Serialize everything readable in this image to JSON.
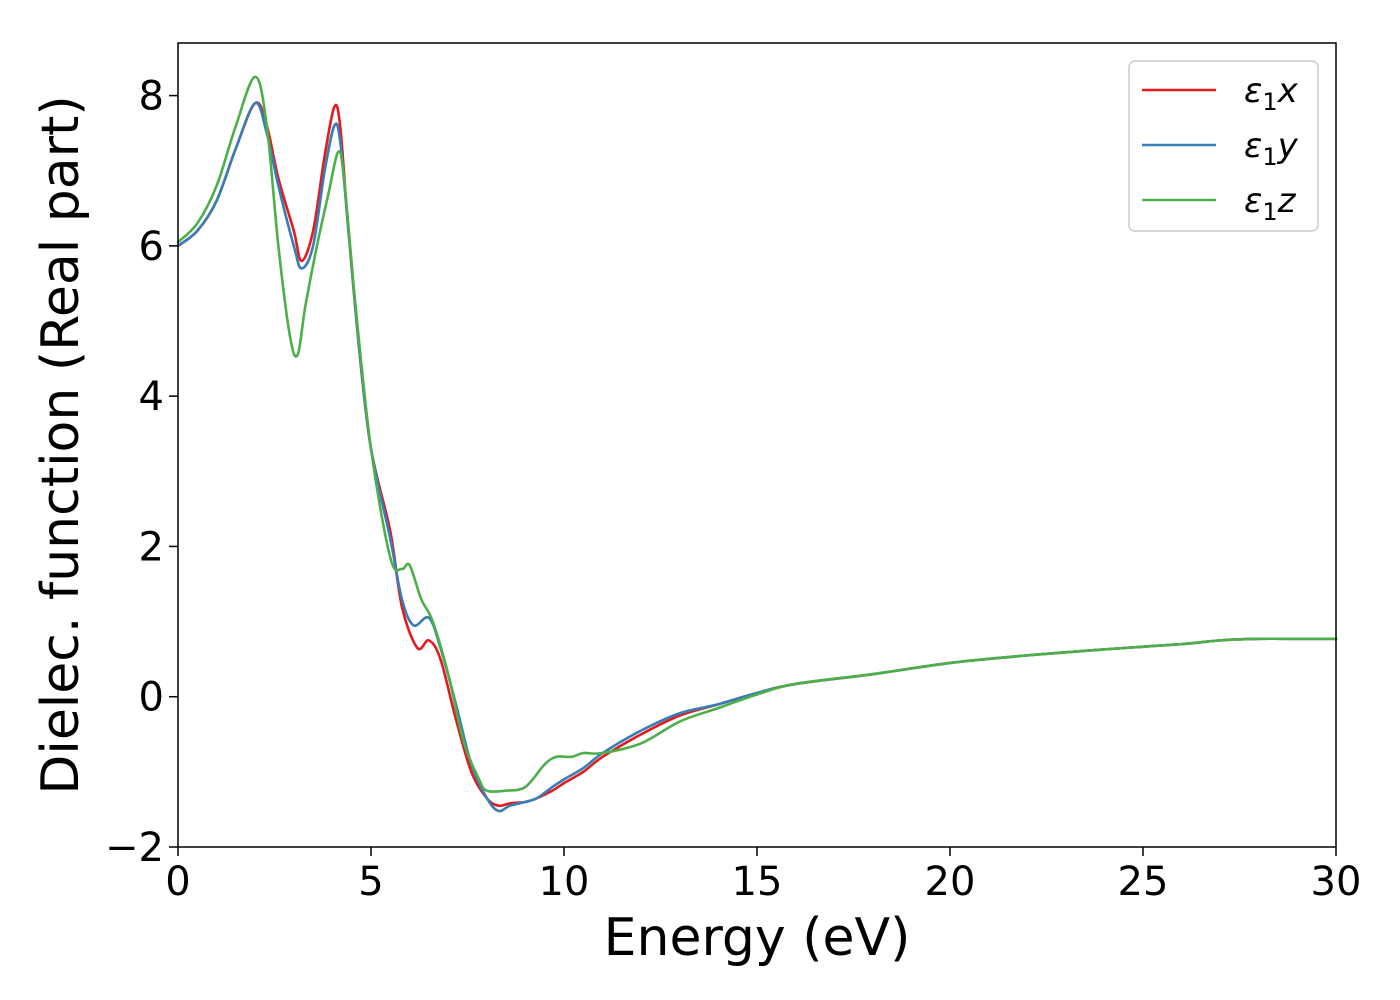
{
  "chart_data": {
    "type": "line",
    "title": "",
    "xlabel": "Energy (eV)",
    "ylabel": "Dielec. function (Real part)",
    "xlim": [
      0,
      30
    ],
    "ylim": [
      -2,
      8.7
    ],
    "xticks": [
      0,
      5,
      10,
      15,
      20,
      25,
      30
    ],
    "yticks": [
      -2,
      0,
      2,
      4,
      6,
      8
    ],
    "xtick_labels": [
      "0",
      "5",
      "10",
      "15",
      "20",
      "25",
      "30"
    ],
    "ytick_labels": [
      "−2",
      "0",
      "2",
      "4",
      "6",
      "8"
    ],
    "grid": false,
    "legend_position": "top-right",
    "series": [
      {
        "name": "ε1x",
        "legend_base": "ε",
        "legend_sub": "1",
        "legend_var": "x",
        "color": "#e41a1c",
        "x": [
          0,
          0.5,
          1.0,
          1.5,
          2.0,
          2.3,
          2.6,
          3.0,
          3.2,
          3.5,
          3.8,
          4.05,
          4.2,
          4.4,
          4.7,
          5.0,
          5.5,
          5.8,
          6.2,
          6.5,
          6.8,
          7.2,
          7.6,
          8.0,
          8.3,
          8.6,
          9.0,
          9.3,
          9.7,
          10.0,
          10.5,
          11.0,
          12.0,
          13.0,
          14.0,
          15.0,
          16.0,
          18.0,
          20.0,
          22.0,
          24.0,
          26.0,
          27.0,
          28.0,
          29.0,
          30.0
        ],
        "y": [
          6.0,
          6.2,
          6.6,
          7.3,
          7.9,
          7.6,
          6.9,
          6.2,
          5.8,
          6.2,
          7.2,
          7.85,
          7.6,
          6.3,
          4.6,
          3.3,
          2.2,
          1.2,
          0.65,
          0.75,
          0.5,
          -0.3,
          -1.0,
          -1.35,
          -1.45,
          -1.42,
          -1.4,
          -1.35,
          -1.25,
          -1.15,
          -1.0,
          -0.8,
          -0.5,
          -0.25,
          -0.1,
          0.05,
          0.17,
          0.3,
          0.45,
          0.55,
          0.63,
          0.7,
          0.75,
          0.77,
          0.77,
          0.77
        ]
      },
      {
        "name": "ε1y",
        "legend_base": "ε",
        "legend_sub": "1",
        "legend_var": "y",
        "color": "#377eb8",
        "x": [
          0,
          0.5,
          1.0,
          1.5,
          2.0,
          2.3,
          2.6,
          3.0,
          3.2,
          3.5,
          3.8,
          4.05,
          4.2,
          4.4,
          4.7,
          5.0,
          5.5,
          5.8,
          6.1,
          6.5,
          6.8,
          7.2,
          7.6,
          8.0,
          8.3,
          8.6,
          9.0,
          9.3,
          9.7,
          10.0,
          10.5,
          11.0,
          12.0,
          13.0,
          14.0,
          15.0,
          16.0,
          18.0,
          20.0,
          22.0,
          24.0,
          26.0,
          27.0,
          28.0,
          29.0,
          30.0
        ],
        "y": [
          6.0,
          6.2,
          6.6,
          7.3,
          7.9,
          7.5,
          6.8,
          6.0,
          5.7,
          6.0,
          7.0,
          7.6,
          7.4,
          6.3,
          4.6,
          3.3,
          2.1,
          1.3,
          0.95,
          1.05,
          0.65,
          -0.1,
          -0.9,
          -1.35,
          -1.52,
          -1.45,
          -1.4,
          -1.35,
          -1.2,
          -1.1,
          -0.95,
          -0.75,
          -0.45,
          -0.22,
          -0.1,
          0.05,
          0.17,
          0.3,
          0.45,
          0.55,
          0.63,
          0.7,
          0.75,
          0.77,
          0.77,
          0.77
        ]
      },
      {
        "name": "ε1z",
        "legend_base": "ε",
        "legend_sub": "1",
        "legend_var": "z",
        "color": "#4daf4a",
        "x": [
          0,
          0.5,
          1.0,
          1.5,
          2.0,
          2.3,
          2.6,
          2.9,
          3.1,
          3.3,
          3.6,
          3.9,
          4.15,
          4.3,
          4.6,
          5.0,
          5.5,
          5.8,
          6.0,
          6.3,
          6.6,
          7.0,
          7.4,
          7.8,
          8.0,
          8.5,
          9.0,
          9.5,
          9.8,
          10.2,
          10.5,
          11.0,
          12.0,
          13.0,
          14.0,
          15.0,
          16.0,
          18.0,
          20.0,
          22.0,
          24.0,
          26.0,
          27.0,
          28.0,
          29.0,
          30.0
        ],
        "y": [
          6.05,
          6.3,
          6.8,
          7.6,
          8.25,
          7.6,
          6.0,
          4.8,
          4.55,
          5.2,
          6.0,
          6.7,
          7.25,
          6.9,
          5.2,
          3.3,
          1.85,
          1.7,
          1.75,
          1.3,
          1.0,
          0.3,
          -0.6,
          -1.1,
          -1.25,
          -1.25,
          -1.2,
          -0.9,
          -0.8,
          -0.8,
          -0.75,
          -0.75,
          -0.62,
          -0.33,
          -0.15,
          0.03,
          0.17,
          0.3,
          0.45,
          0.55,
          0.63,
          0.7,
          0.75,
          0.77,
          0.77,
          0.77
        ]
      }
    ]
  }
}
